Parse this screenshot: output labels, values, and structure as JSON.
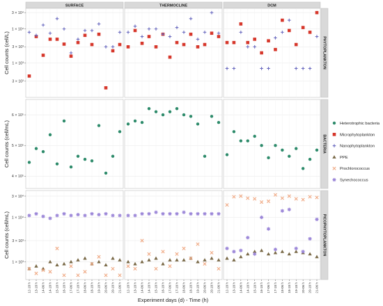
{
  "chart_data": {
    "type": "scatter",
    "xlabel": "Experiment days (d) - Time (h)",
    "columns": [
      "SURFACE",
      "THERMOCLINE",
      "DCM"
    ],
    "x_categories": [
      "12-18 h",
      "13-18 h",
      "14-06 h",
      "14-18 h",
      "15-18 h",
      "16-18 h",
      "17-06 h",
      "17-18 h",
      "18-06 h",
      "18-18 h",
      "19-18 h",
      "20-06 h",
      "20-18 h",
      "21-06 h"
    ],
    "legend_placement": "right",
    "legend": [
      {
        "name": "Heterotrophic bacteria",
        "shape": "circle",
        "color": "#2e8b6b"
      },
      {
        "name": "Microphytoplankton",
        "shape": "square",
        "color": "#d6372b"
      },
      {
        "name": "Nanophytoplankton",
        "shape": "plus",
        "color": "#6a6abf"
      },
      {
        "name": "PPE",
        "shape": "triangle",
        "color": "#7a6a48"
      },
      {
        "name": "Prochlorococcus",
        "shape": "cross",
        "color": "#f0a882"
      },
      {
        "name": "Synechococcus",
        "shape": "star",
        "color": "#9b86d8"
      }
    ],
    "rows": [
      {
        "strip": "PHYTOPLANKTON",
        "ylabel": "Cell counts (cell/L)",
        "scale": "log",
        "ylim": [
          100,
          40000
        ],
        "ticks": [
          {
            "v": 300,
            "label": "3 × 10²"
          },
          {
            "v": 1000,
            "label": "1 × 10³"
          },
          {
            "v": 3000,
            "label": "3 × 10³"
          },
          {
            "v": 10000,
            "label": "1 × 10⁴"
          },
          {
            "v": 30000,
            "label": "3 × 10⁴"
          }
        ],
        "panels": [
          {
            "series": [
              {
                "name": "Microphytoplankton",
                "values": [
                  420,
                  6000,
                  1700,
                  5000,
                  5000,
                  3600,
                  1600,
                  4000,
                  6500,
                  3500,
                  7000,
                  190,
                  2300,
                  3500
                ]
              },
              {
                "name": "Nanophytoplankton",
                "values": [
                  8000,
                  6500,
                  13000,
                  7500,
                  20000,
                  10000,
                  2000,
                  5000,
                  9000,
                  9000,
                  14000,
                  3000,
                  3000,
                  8000
                ]
              }
            ]
          },
          {
            "series": [
              {
                "name": "Microphytoplankton",
                "values": [
                  3000,
                  9000,
                  3800,
                  6000,
                  3000,
                  7000,
                  1500,
                  4000,
                  3500,
                  7000,
                  3000,
                  3500,
                  7500,
                  6000
                ]
              },
              {
                "name": "Nanophytoplankton",
                "values": [
                  8000,
                  12000,
                  6000,
                  10000,
                  10000,
                  7000,
                  6000,
                  11000,
                  8000,
                  20000,
                  5000,
                  8000,
                  30000,
                  7500
                ]
              }
            ]
          },
          {
            "series": [
              {
                "name": "Microphytoplankton",
                "values": [
                  4000,
                  4000,
                  14000,
                  4000,
                  5000,
                  2000,
                  4500,
                  2500,
                  18000,
                  9000,
                  3500,
                  11000,
                  8000,
                  30000
                ]
              },
              {
                "name": "Nanophytoplankton",
                "values": [
                  700,
                  700,
                  8000,
                  3000,
                  3000,
                  700,
                  700,
                  5500,
                  8000,
                  18000,
                  700,
                  700,
                  700,
                  6000
                ]
              }
            ]
          }
        ]
      },
      {
        "strip": "BACTERIA",
        "ylabel": "Cell counts (cell/mL)",
        "scale": "linear",
        "ylim": [
          360000,
          650000
        ],
        "ticks": [
          {
            "v": 400000,
            "label": "4 × 10⁵"
          },
          {
            "v": 500000,
            "label": "5 × 10⁵"
          },
          {
            "v": 600000,
            "label": "6 × 10⁵"
          }
        ],
        "panels": [
          {
            "series": [
              {
                "name": "Heterotrophic bacteria",
                "values": [
                  445000,
                  490000,
                  480000,
                  535000,
                  440000,
                  580000,
                  430000,
                  465000,
                  455000,
                  450000,
                  565000,
                  410000,
                  465000,
                  545000
                ]
              }
            ]
          },
          {
            "series": [
              {
                "name": "Heterotrophic bacteria",
                "values": [
                  570000,
                  580000,
                  575000,
                  620000,
                  610000,
                  600000,
                  610000,
                  620000,
                  600000,
                  595000,
                  570000,
                  465000,
                  595000,
                  575000
                ]
              }
            ]
          },
          {
            "series": [
              {
                "name": "Heterotrophic bacteria",
                "values": [
                  470000,
                  545000,
                  515000,
                  515000,
                  530000,
                  500000,
                  460000,
                  500000,
                  485000,
                  465000,
                  490000,
                  425000,
                  455000,
                  485000
                ]
              }
            ]
          }
        ]
      },
      {
        "strip": "PICOPHYTOPLANKTON",
        "ylabel": "Cell counts (cell/mL)",
        "scale": "log",
        "ylim": [
          400,
          40000
        ],
        "ticks": [
          {
            "v": 1000,
            "label": "1 × 10³"
          },
          {
            "v": 3000,
            "label": "3 × 10³"
          },
          {
            "v": 10000,
            "label": "1 × 10⁴"
          },
          {
            "v": 30000,
            "label": "3 × 10⁴"
          }
        ],
        "panels": [
          {
            "series": [
              {
                "name": "PPE",
                "values": [
                  700,
                  800,
                  700,
                  1000,
                  850,
                  900,
                  1000,
                  1100,
                  1200,
                  900,
                  1000,
                  850,
                  1200,
                  1100
                ]
              },
              {
                "name": "Prochlorococcus",
                "values": [
                  700,
                  550,
                  650,
                  600,
                  2000,
                  500,
                  800,
                  500,
                  600,
                  900,
                  1300,
                  500,
                  700,
                  500
                ]
              },
              {
                "name": "Synechococcus",
                "values": [
                  11000,
                  12000,
                  10500,
                  9500,
                  11000,
                  12000,
                  11000,
                  11500,
                  11000,
                  12000,
                  11500,
                  12000,
                  11000,
                  11000
                ]
              }
            ]
          },
          {
            "series": [
              {
                "name": "PPE",
                "values": [
                  1000,
                  900,
                  1000,
                  1100,
                  1200,
                  900,
                  1100,
                  1100,
                  1100,
                  1200,
                  1000,
                  1100,
                  1200,
                  1100
                ]
              },
              {
                "name": "Prochlorococcus",
                "values": [
                  800,
                  700,
                  3000,
                  1500,
                  700,
                  1700,
                  800,
                  1500,
                  2000,
                  1200,
                  2500,
                  900,
                  1600,
                  700
                ]
              },
              {
                "name": "Synechococcus",
                "values": [
                  11000,
                  11000,
                  12000,
                  12000,
                  13000,
                  12000,
                  12000,
                  12000,
                  13000,
                  12000,
                  12000,
                  12000,
                  12000,
                  12000
                ]
              }
            ]
          },
          {
            "series": [
              {
                "name": "PPE",
                "values": [
                  1200,
                  1100,
                  1300,
                  1500,
                  1700,
                  1800,
                  1500,
                  1600,
                  1700,
                  1500,
                  1700,
                  1600,
                  1500,
                  1300
                ]
              },
              {
                "name": "Prochlorococcus",
                "values": [
                  19000,
                  29000,
                  30000,
                  27000,
                  26000,
                  22000,
                  23000,
                  32000,
                  27000,
                  30000,
                  26000,
                  25000,
                  29000,
                  28000
                ]
              },
              {
                "name": "Synechococcus",
                "values": [
                  2000,
                  1700,
                  1800,
                  3500,
                  1500,
                  10000,
                  5500,
                  1900,
                  14000,
                  15000,
                  2000,
                  1700,
                  3300,
                  9000
                ]
              }
            ]
          }
        ]
      }
    ]
  }
}
